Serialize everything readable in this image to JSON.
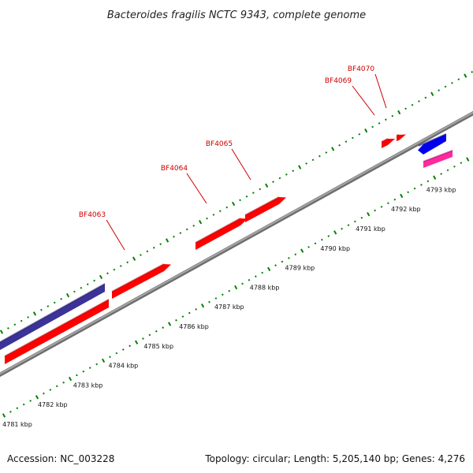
{
  "title": "Bacteroides fragilis NCTC 9343, complete genome",
  "footer": {
    "accession": "Accession: NC_003228",
    "summary": "Topology: circular; Length: 5,205,140 bp; Genes: 4,276"
  },
  "colors": {
    "backbone": "#8a8a8a",
    "ticks": "#008000",
    "gene_red": "#ff0000",
    "gene_blue": "#0000ee",
    "gene_navy": "#3b3397",
    "gene_pink": "#ff2a9d",
    "label": "#cc0000"
  },
  "scale_labels": [
    "4781 kbp",
    "4782 kbp",
    "4783 kbp",
    "4784 kbp",
    "4785 kbp",
    "4786 kbp",
    "4787 kbp",
    "4788 kbp",
    "4789 kbp",
    "4790 kbp",
    "4791 kbp",
    "4792 kbp",
    "4793 kbp"
  ],
  "gene_labels": [
    "BF4063",
    "BF4064",
    "BF4065",
    "BF4069",
    "BF4070"
  ]
}
